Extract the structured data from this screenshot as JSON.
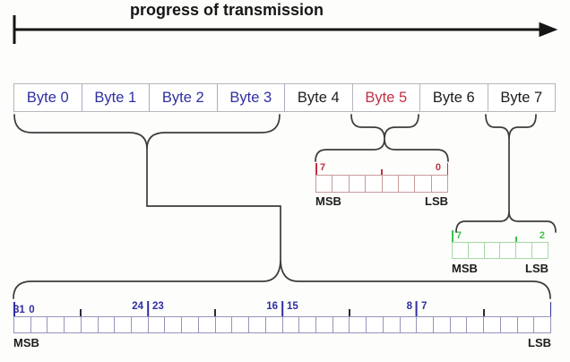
{
  "title": "progress of transmission",
  "colors": {
    "blue": "#2e2ea2",
    "red": "#c23043",
    "green": "#3cc24c",
    "black": "#1c1c1c",
    "line": "#3b3b3b",
    "arrow": "#161616"
  },
  "byte_row": {
    "bytes": [
      {
        "label": "Byte 0",
        "color": "blue"
      },
      {
        "label": "Byte 1",
        "color": "blue"
      },
      {
        "label": "Byte 2",
        "color": "blue"
      },
      {
        "label": "Byte 3",
        "color": "blue"
      },
      {
        "label": "Byte 4",
        "color": "black"
      },
      {
        "label": "Byte 5",
        "color": "red"
      },
      {
        "label": "Byte 6",
        "color": "black"
      },
      {
        "label": "Byte 7",
        "color": "black"
      }
    ]
  },
  "registers": {
    "byte5": {
      "bit_high": "7",
      "bit_low": "0",
      "cell_count": 8,
      "msb": "MSB",
      "lsb": "LSB"
    },
    "byte7": {
      "bit_high": "7",
      "bit_low": "2",
      "cell_count": 6,
      "msb": "MSB",
      "lsb": "LSB"
    },
    "word32": {
      "cell_count": 32,
      "bit_labels": [
        "31",
        "24",
        "23",
        "16",
        "15",
        "8",
        "7",
        "0"
      ],
      "msb": "MSB",
      "lsb": "LSB"
    }
  }
}
